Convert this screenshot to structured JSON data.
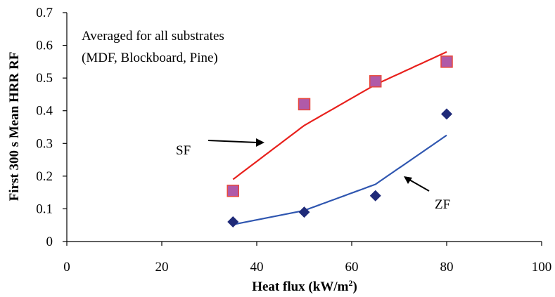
{
  "chart_data": {
    "type": "scatter",
    "xlabel": "Heat flux (kW/m",
    "xlabel_sup": "2",
    "xlabel_end": ")",
    "ylabel": "First 300 s Mean HRR RF",
    "xlim": [
      0,
      100
    ],
    "ylim": [
      0,
      0.7
    ],
    "x_ticks": [
      0,
      20,
      40,
      60,
      80,
      100
    ],
    "y_ticks": [
      0,
      0.1,
      0.2,
      0.3,
      0.4,
      0.5,
      0.6,
      0.7
    ],
    "grid": false,
    "annotation": [
      "Averaged for all substrates",
      "(MDF, Blockboard, Pine)"
    ],
    "series": [
      {
        "name": "SF",
        "marker": "square",
        "marker_color": "#b05aa8",
        "marker_edge": "#e8483c",
        "trend_color": "#e8201c",
        "x": [
          35,
          50,
          65,
          80
        ],
        "y": [
          0.155,
          0.42,
          0.49,
          0.55
        ],
        "trend": {
          "x": [
            35,
            50,
            65,
            80
          ],
          "y": [
            0.19,
            0.355,
            0.48,
            0.58
          ]
        }
      },
      {
        "name": "ZF",
        "marker": "diamond",
        "marker_color": "#1f2a78",
        "trend_color": "#2f56b0",
        "x": [
          35,
          50,
          65,
          80
        ],
        "y": [
          0.06,
          0.09,
          0.14,
          0.39
        ],
        "trend": {
          "x": [
            35,
            50,
            65,
            80
          ],
          "y": [
            0.052,
            0.095,
            0.175,
            0.325
          ]
        }
      }
    ]
  }
}
